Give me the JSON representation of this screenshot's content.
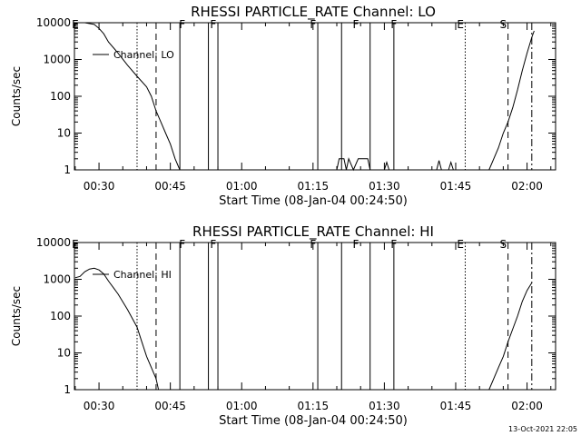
{
  "footer": {
    "timestamp": "13-Oct-2021 22:05"
  },
  "chart_data": [
    {
      "type": "line",
      "title": "RHESSI PARTICLE_RATE Channel: LO",
      "xlabel": "Start Time (08-Jan-04 00:24:50)",
      "ylabel": "Counts/sec",
      "yscale": "log",
      "ylim": [
        1,
        10000
      ],
      "xlim": [
        "00:24:50",
        "02:06:00"
      ],
      "xticks": [
        "00:30",
        "00:45",
        "01:00",
        "01:15",
        "01:30",
        "01:45",
        "02:00"
      ],
      "yticks": [
        "1",
        "10",
        "100",
        "1000",
        "10000"
      ],
      "legend": {
        "label": "Channel: LO",
        "placement": "upper-left"
      },
      "series": [
        {
          "name": "Channel: LO",
          "segments": [
            [
              [
                "00:25:00",
                10000
              ],
              [
                "00:27:00",
                10000
              ],
              [
                "00:29:00",
                9000
              ],
              [
                "00:30:00",
                7000
              ],
              [
                "00:31:00",
                5000
              ],
              [
                "00:32:00",
                3000
              ],
              [
                "00:34:00",
                1500
              ],
              [
                "00:36:00",
                700
              ],
              [
                "00:38:00",
                350
              ],
              [
                "00:40:00",
                180
              ],
              [
                "00:41:00",
                100
              ],
              [
                "00:42:00",
                40
              ],
              [
                "00:43:00",
                20
              ],
              [
                "00:44:00",
                10
              ],
              [
                "00:45:00",
                5
              ],
              [
                "00:46:00",
                2
              ],
              [
                "00:47:00",
                1
              ]
            ],
            [
              [
                "01:20:00",
                1
              ],
              [
                "01:20:30",
                2
              ],
              [
                "01:21:30",
                2
              ],
              [
                "01:22:00",
                1
              ],
              [
                "01:22:30",
                2
              ],
              [
                "01:23:30",
                1
              ],
              [
                "01:24:30",
                2
              ],
              [
                "01:26:30",
                2
              ],
              [
                "01:27:00",
                1
              ]
            ],
            [
              [
                "01:30:00",
                1
              ],
              [
                "01:30:30",
                1.6
              ],
              [
                "01:31:00",
                1
              ]
            ],
            [
              [
                "01:41:00",
                1
              ],
              [
                "01:41:30",
                1.8
              ],
              [
                "01:42:00",
                1
              ]
            ],
            [
              [
                "01:43:30",
                1
              ],
              [
                "01:44:00",
                1.6
              ],
              [
                "01:44:30",
                1
              ]
            ],
            [
              [
                "01:52:00",
                1
              ],
              [
                "01:53:00",
                2
              ],
              [
                "01:54:00",
                4
              ],
              [
                "01:55:00",
                10
              ],
              [
                "01:56:00",
                20
              ],
              [
                "01:57:00",
                50
              ],
              [
                "01:58:00",
                150
              ],
              [
                "01:59:00",
                500
              ],
              [
                "02:00:00",
                1500
              ],
              [
                "02:01:00",
                4000
              ],
              [
                "02:01:30",
                6000
              ]
            ]
          ]
        }
      ],
      "flag_labels": [
        {
          "label": "E",
          "x": "00:25:00"
        },
        {
          "label": "F",
          "x": "00:47:30"
        },
        {
          "label": "F",
          "x": "00:54:00"
        },
        {
          "label": "F",
          "x": "01:15:00"
        },
        {
          "label": "F",
          "x": "01:24:00"
        },
        {
          "label": "F",
          "x": "01:32:00"
        },
        {
          "label": "E",
          "x": "01:46:00"
        },
        {
          "label": "S",
          "x": "01:55:00"
        }
      ],
      "markers": {
        "solid": [
          "00:47:00",
          "00:53:00",
          "00:55:00",
          "01:16:00",
          "01:21:00",
          "01:27:00",
          "01:32:00"
        ],
        "dotted": [
          "00:38:00",
          "01:47:00"
        ],
        "dashed": [
          "00:42:00",
          "01:56:00"
        ],
        "dashdot": [
          "02:01:00"
        ]
      }
    },
    {
      "type": "line",
      "title": "RHESSI PARTICLE_RATE Channel: HI",
      "xlabel": "Start Time (08-Jan-04 00:24:50)",
      "ylabel": "Counts/sec",
      "yscale": "log",
      "ylim": [
        1,
        10000
      ],
      "xlim": [
        "00:24:50",
        "02:06:00"
      ],
      "xticks": [
        "00:30",
        "00:45",
        "01:00",
        "01:15",
        "01:30",
        "01:45",
        "02:00"
      ],
      "yticks": [
        "1",
        "10",
        "100",
        "1000",
        "10000"
      ],
      "legend": {
        "label": "Channel: HI",
        "placement": "upper-left"
      },
      "series": [
        {
          "name": "Channel: HI",
          "segments": [
            [
              [
                "00:25:00",
                1100
              ],
              [
                "00:26:00",
                1200
              ],
              [
                "00:27:00",
                1600
              ],
              [
                "00:28:00",
                1900
              ],
              [
                "00:29:00",
                2000
              ],
              [
                "00:30:00",
                1800
              ],
              [
                "00:31:00",
                1400
              ],
              [
                "00:32:00",
                900
              ],
              [
                "00:34:00",
                400
              ],
              [
                "00:36:00",
                150
              ],
              [
                "00:38:00",
                50
              ],
              [
                "00:39:00",
                20
              ],
              [
                "00:40:00",
                8
              ],
              [
                "00:41:00",
                4
              ],
              [
                "00:42:00",
                2
              ],
              [
                "00:42:30",
                1
              ]
            ],
            [
              [
                "01:52:00",
                1
              ],
              [
                "01:53:00",
                2
              ],
              [
                "01:54:00",
                4
              ],
              [
                "01:55:00",
                8
              ],
              [
                "01:56:00",
                20
              ],
              [
                "01:57:00",
                45
              ],
              [
                "01:58:00",
                100
              ],
              [
                "01:59:00",
                250
              ],
              [
                "02:00:00",
                500
              ],
              [
                "02:01:00",
                800
              ]
            ]
          ]
        }
      ],
      "flag_labels": [
        {
          "label": "E",
          "x": "00:25:00"
        },
        {
          "label": "F",
          "x": "00:47:30"
        },
        {
          "label": "F",
          "x": "00:54:00"
        },
        {
          "label": "F",
          "x": "01:15:00"
        },
        {
          "label": "F",
          "x": "01:24:00"
        },
        {
          "label": "F",
          "x": "01:32:00"
        },
        {
          "label": "E",
          "x": "01:46:00"
        },
        {
          "label": "S",
          "x": "01:55:00"
        }
      ],
      "markers": {
        "solid": [
          "00:47:00",
          "00:53:00",
          "00:55:00",
          "01:16:00",
          "01:21:00",
          "01:27:00",
          "01:32:00"
        ],
        "dotted": [
          "00:38:00",
          "01:47:00"
        ],
        "dashed": [
          "00:42:00",
          "01:56:00"
        ],
        "dashdot": [
          "02:01:00"
        ]
      }
    }
  ]
}
